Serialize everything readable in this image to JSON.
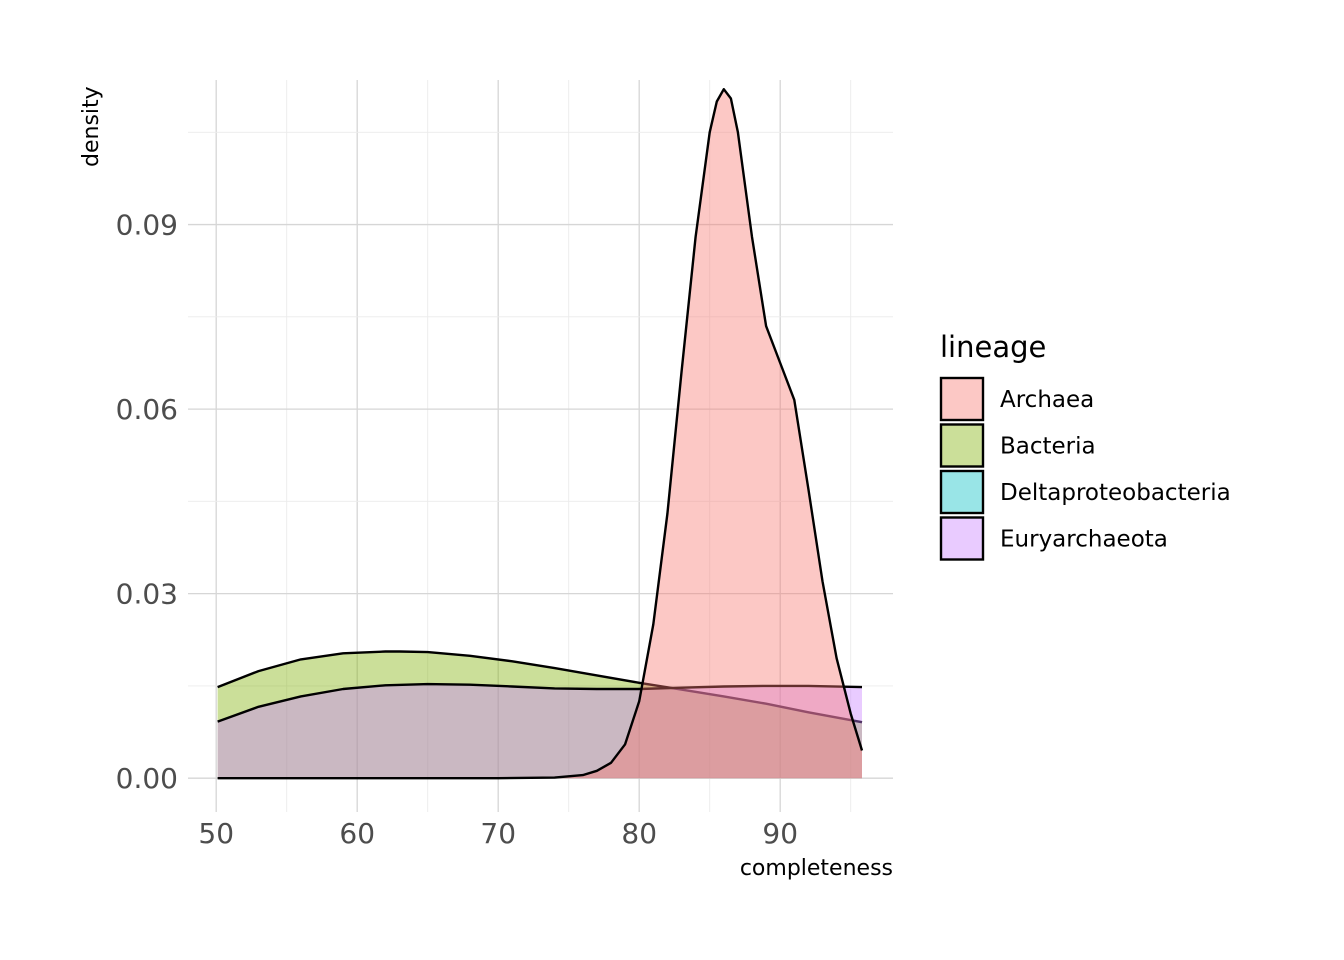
{
  "chart_data": {
    "type": "area",
    "subtype": "density",
    "xlabel": "completeness",
    "ylabel": "density",
    "xlim": [
      48,
      98
    ],
    "ylim": [
      -0.0055,
      0.1135
    ],
    "x_ticks": [
      50,
      60,
      70,
      80,
      90
    ],
    "x_tick_labels": [
      "50",
      "60",
      "70",
      "80",
      "90"
    ],
    "y_ticks": [
      0.0,
      0.03,
      0.06,
      0.09
    ],
    "y_tick_labels": [
      "0.00",
      "0.03",
      "0.06",
      "0.09"
    ],
    "grid": true,
    "legend": {
      "title": "lineage",
      "position": "right",
      "entries": [
        {
          "label": "Archaea",
          "color": "#F8766D"
        },
        {
          "label": "Bacteria",
          "color": "#7CAE00"
        },
        {
          "label": "Deltaproteobacteria",
          "color": "#00BFC4"
        },
        {
          "label": "Euryarchaeota",
          "color": "#C77CFF"
        }
      ]
    },
    "series": [
      {
        "name": "Bacteria",
        "color": "#7CAE00",
        "x": [
          50.1,
          53,
          56,
          59,
          62,
          63,
          65,
          68,
          71,
          74,
          77,
          80,
          83,
          86,
          89,
          92,
          95.8
        ],
        "y": [
          0.0148,
          0.0174,
          0.0193,
          0.0203,
          0.0206,
          0.0206,
          0.0205,
          0.0199,
          0.019,
          0.0179,
          0.0167,
          0.0155,
          0.0144,
          0.0133,
          0.0121,
          0.0107,
          0.0091
        ]
      },
      {
        "name": "Euryarchaeota",
        "color": "#C77CFF",
        "x": [
          50.1,
          53,
          56,
          59,
          62,
          65,
          68,
          71,
          74,
          77,
          80,
          83,
          86,
          89,
          92,
          95.8
        ],
        "y": [
          0.0092,
          0.0116,
          0.0133,
          0.0145,
          0.0151,
          0.0153,
          0.0152,
          0.0149,
          0.0146,
          0.0145,
          0.0145,
          0.0147,
          0.0149,
          0.015,
          0.015,
          0.0148
        ]
      },
      {
        "name": "Archaea",
        "color": "#F8766D",
        "x": [
          50.1,
          55,
          60,
          65,
          70,
          74,
          76,
          77,
          78,
          79,
          80,
          81,
          82,
          83,
          84,
          85,
          85.5,
          86,
          86.5,
          87,
          88,
          89,
          90,
          91,
          92,
          93,
          94,
          95,
          95.8
        ],
        "y": [
          0.0,
          0.0,
          0.0,
          0.0,
          0.0,
          0.0001,
          0.0005,
          0.0012,
          0.0025,
          0.0055,
          0.0125,
          0.025,
          0.043,
          0.066,
          0.088,
          0.105,
          0.11,
          0.112,
          0.1105,
          0.105,
          0.088,
          0.0735,
          0.0675,
          0.0615,
          0.047,
          0.032,
          0.0195,
          0.0105,
          0.0045
        ]
      }
    ]
  }
}
